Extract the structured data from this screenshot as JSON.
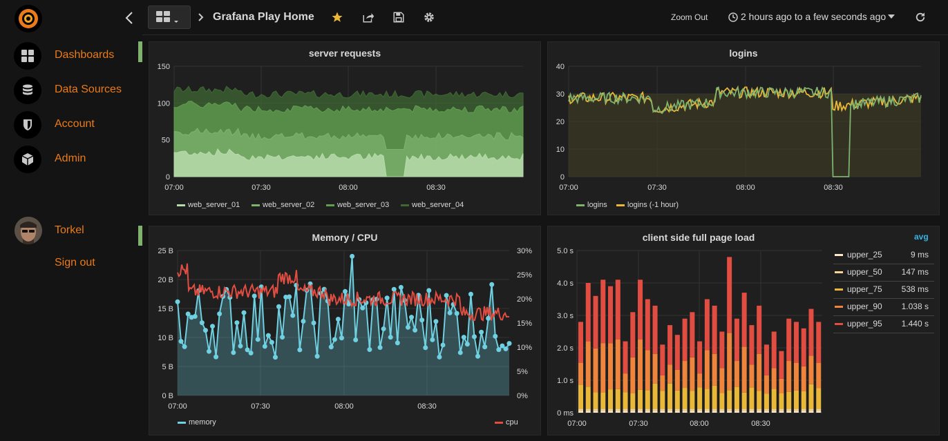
{
  "sidebar": {
    "items": [
      {
        "label": "Dashboards"
      },
      {
        "label": "Data Sources"
      },
      {
        "label": "Account"
      },
      {
        "label": "Admin"
      }
    ],
    "user": {
      "name": "Torkel",
      "signout": "Sign out"
    }
  },
  "topbar": {
    "title": "Grafana Play Home",
    "zoom_out": "Zoom Out",
    "time_range": "2 hours ago to a few seconds ago",
    "accent": "#eb7b18"
  },
  "panels": {
    "server_requests": {
      "title": "server requests"
    },
    "logins": {
      "title": "logins"
    },
    "memory_cpu": {
      "title": "Memory / CPU"
    },
    "page_load": {
      "title": "client side full page load",
      "legend_header": "avg"
    }
  },
  "chart_data": [
    {
      "type": "area",
      "title": "server requests",
      "x": [
        "07:00",
        "07:30",
        "08:00",
        "08:30"
      ],
      "xlim": [
        "06:56",
        "09:02"
      ],
      "ylim": [
        0,
        150
      ],
      "yticks": [
        0,
        50,
        100,
        150
      ],
      "stacked": true,
      "series": [
        {
          "name": "web_server_01",
          "color": "#b7dbab",
          "approx_level": 27
        },
        {
          "name": "web_server_02",
          "color": "#7eb26d",
          "approx_level": 55
        },
        {
          "name": "web_server_03",
          "color": "#629e51",
          "approx_level": 92
        },
        {
          "name": "web_server_04",
          "color": "#3f6833",
          "approx_level": 112
        }
      ],
      "legend": "bottom",
      "grid": true
    },
    {
      "type": "line",
      "title": "logins",
      "x": [
        "07:00",
        "07:30",
        "08:00",
        "08:30"
      ],
      "ylim": [
        0,
        40
      ],
      "yticks": [
        0,
        10,
        20,
        30,
        40
      ],
      "series": [
        {
          "name": "logins",
          "color": "#7eb26d"
        },
        {
          "name": "logins (-1 hour)",
          "color": "#eab839"
        }
      ],
      "legend": "bottom",
      "grid": true
    },
    {
      "type": "line",
      "title": "Memory / CPU",
      "x": [
        "07:00",
        "07:30",
        "08:00",
        "08:30"
      ],
      "y_left_ticks": [
        "0 B",
        "5 B",
        "10 B",
        "15 B",
        "20 B",
        "25 B"
      ],
      "y_right_ticks": [
        "0%",
        "5%",
        "10%",
        "15%",
        "20%",
        "25%",
        "30%"
      ],
      "series": [
        {
          "name": "memory",
          "color": "#6ed0e0",
          "axis": "left"
        },
        {
          "name": "cpu",
          "color": "#e24d42",
          "axis": "right"
        }
      ],
      "legend": "bottom",
      "grid": true
    },
    {
      "type": "bar",
      "title": "client side full page load",
      "x": [
        "07:00",
        "07:30",
        "08:00",
        "08:30"
      ],
      "y_ticks": [
        "0 ms",
        "1.0 s",
        "2.0 s",
        "3.0 s",
        "4.0 s",
        "5.0 s"
      ],
      "series": [
        {
          "name": "upper_25",
          "avg": "9 ms",
          "color": "#fceaca"
        },
        {
          "name": "upper_50",
          "avg": "147 ms",
          "color": "#f4d598"
        },
        {
          "name": "upper_75",
          "avg": "538 ms",
          "color": "#eab839"
        },
        {
          "name": "upper_90",
          "avg": "1.038 s",
          "color": "#ef843c"
        },
        {
          "name": "upper_95",
          "avg": "1.440 s",
          "color": "#e24d42"
        }
      ],
      "legend": "right"
    }
  ]
}
